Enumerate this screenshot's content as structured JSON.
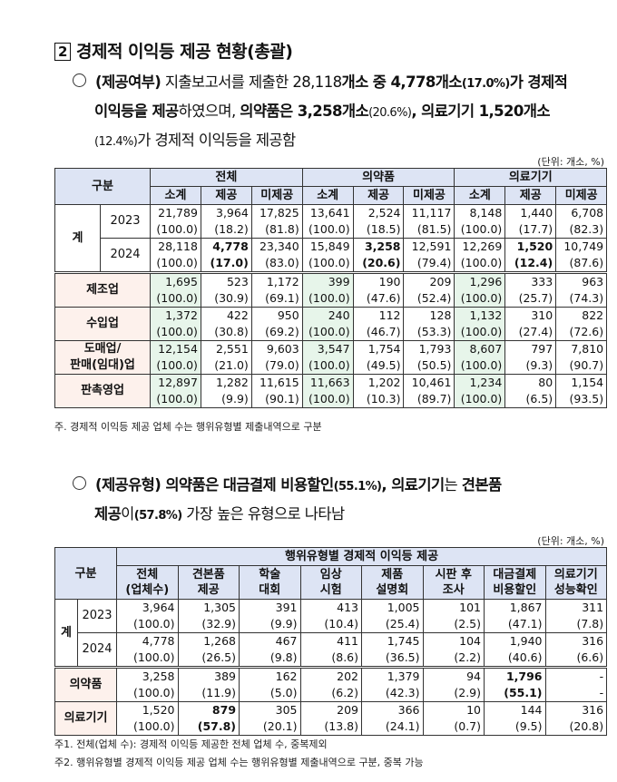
{
  "section": {
    "number": "2",
    "title": "경제적 이익등 제공 현황(총괄)"
  },
  "para1": {
    "label": "(제공여부)",
    "t1": " 지출보고서를 제출한 28,118",
    "t2": "개소 중 4,778개소",
    "t3": "(17.0%)",
    "t4": "가 경제적",
    "t5": "이익등을 제공",
    "t6": "하였으며, ",
    "t7": "의약품은 3,258개소",
    "t8": "(20.6%)",
    "t9": ", 의료기기 1,520개소",
    "t10": "(12.4%)",
    "t11": "가 경제적 이익등을 제공함"
  },
  "table1": {
    "unit": "(단위: 개소, %)",
    "header_group": "구분",
    "groups": [
      "전체",
      "의약품",
      "의료기기"
    ],
    "subcols": [
      "소계",
      "제공",
      "미제공",
      "소계",
      "제공",
      "미제공",
      "소계",
      "제공",
      "미제공"
    ],
    "total_label": "계",
    "rows": [
      {
        "label": "2023",
        "n": [
          "21,789",
          "3,964",
          "17,825",
          "13,641",
          "2,524",
          "11,117",
          "8,148",
          "1,440",
          "6,708"
        ],
        "p": [
          "(100.0)",
          "(18.2)",
          "(81.8)",
          "(100.0)",
          "(18.5)",
          "(81.5)",
          "(100.0)",
          "(17.7)",
          "(82.3)"
        ]
      },
      {
        "label": "2024",
        "n": [
          "28,118",
          "4,778",
          "23,340",
          "15,849",
          "3,258",
          "12,591",
          "12,269",
          "1,520",
          "10,749"
        ],
        "p": [
          "(100.0)",
          "(17.0)",
          "(83.0)",
          "(100.0)",
          "(20.6)",
          "(79.4)",
          "(100.0)",
          "(12.4)",
          "(87.6)"
        ]
      },
      {
        "label": "제조업",
        "n": [
          "1,695",
          "523",
          "1,172",
          "399",
          "190",
          "209",
          "1,296",
          "333",
          "963"
        ],
        "p": [
          "(100.0)",
          "(30.9)",
          "(69.1)",
          "(100.0)",
          "(47.6)",
          "(52.4)",
          "(100.0)",
          "(25.7)",
          "(74.3)"
        ]
      },
      {
        "label": "수입업",
        "n": [
          "1,372",
          "422",
          "950",
          "240",
          "112",
          "128",
          "1,132",
          "310",
          "822"
        ],
        "p": [
          "(100.0)",
          "(30.8)",
          "(69.2)",
          "(100.0)",
          "(46.7)",
          "(53.3)",
          "(100.0)",
          "(27.4)",
          "(72.6)"
        ]
      },
      {
        "label": "도매업/\n판매(임대)업",
        "n": [
          "12,154",
          "2,551",
          "9,603",
          "3,547",
          "1,754",
          "1,793",
          "8,607",
          "797",
          "7,810"
        ],
        "p": [
          "(100.0)",
          "(21.0)",
          "(79.0)",
          "(100.0)",
          "(49.5)",
          "(50.5)",
          "(100.0)",
          "(9.3)",
          "(90.7)"
        ]
      },
      {
        "label": "판촉영업",
        "n": [
          "12,897",
          "1,282",
          "11,615",
          "11,663",
          "1,202",
          "10,461",
          "1,234",
          "80",
          "1,154"
        ],
        "p": [
          "(100.0)",
          "(9.9)",
          "(90.1)",
          "(100.0)",
          "(10.3)",
          "(89.7)",
          "(100.0)",
          "(6.5)",
          "(93.5)"
        ]
      }
    ],
    "note": "주. 경제적 이익등 제공 업체 수는 행위유형별 제출내역으로 구분"
  },
  "para2": {
    "label": "(제공유형)",
    "t1": " 의약품은 대금결제 비용할인",
    "t2": "(55.1%)",
    "t3": ", 의료기기",
    "t4": "는 ",
    "t5": "견본품",
    "t6": "제공",
    "t7": "이",
    "t8": "(57.8%)",
    "t9": " 가장 높은 유형으로 나타남"
  },
  "table2": {
    "unit": "(단위: 개소, %)",
    "header_group": "구분",
    "super_header": "행위유형별 경제적 이익등 제공",
    "cols": [
      "전체\n(업체수)",
      "견본품\n제공",
      "학술\n대회",
      "임상\n시험",
      "제품\n설명회",
      "시판 후\n조사",
      "대금결제\n비용할인",
      "의료기기\n성능확인"
    ],
    "total_label": "계",
    "rows": [
      {
        "label": "2023",
        "n": [
          "3,964",
          "1,305",
          "391",
          "413",
          "1,005",
          "101",
          "1,867",
          "311"
        ],
        "p": [
          "(100.0)",
          "(32.9)",
          "(9.9)",
          "(10.4)",
          "(25.4)",
          "(2.5)",
          "(47.1)",
          "(7.8)"
        ]
      },
      {
        "label": "2024",
        "n": [
          "4,778",
          "1,268",
          "467",
          "411",
          "1,745",
          "104",
          "1,940",
          "316"
        ],
        "p": [
          "(100.0)",
          "(26.5)",
          "(9.8)",
          "(8.6)",
          "(36.5)",
          "(2.2)",
          "(40.6)",
          "(6.6)"
        ]
      },
      {
        "label": "의약품",
        "n": [
          "3,258",
          "389",
          "162",
          "202",
          "1,379",
          "94",
          "1,796",
          "-"
        ],
        "p": [
          "(100.0)",
          "(11.9)",
          "(5.0)",
          "(6.2)",
          "(42.3)",
          "(2.9)",
          "(55.1)",
          "-"
        ]
      },
      {
        "label": "의료기기",
        "n": [
          "1,520",
          "879",
          "305",
          "209",
          "366",
          "10",
          "144",
          "316"
        ],
        "p": [
          "(100.0)",
          "(57.8)",
          "(20.1)",
          "(13.8)",
          "(24.1)",
          "(0.7)",
          "(9.5)",
          "(20.8)"
        ]
      }
    ],
    "notes": [
      "주1. 전체(업체 수): 경제적 이익등 제공한 전체 업체 수, 중복제외",
      "주2. 행위유형별 경제적 이익등 제공 업체 수는 행위유형별 제출내역으로 구분, 중복 가능"
    ]
  }
}
